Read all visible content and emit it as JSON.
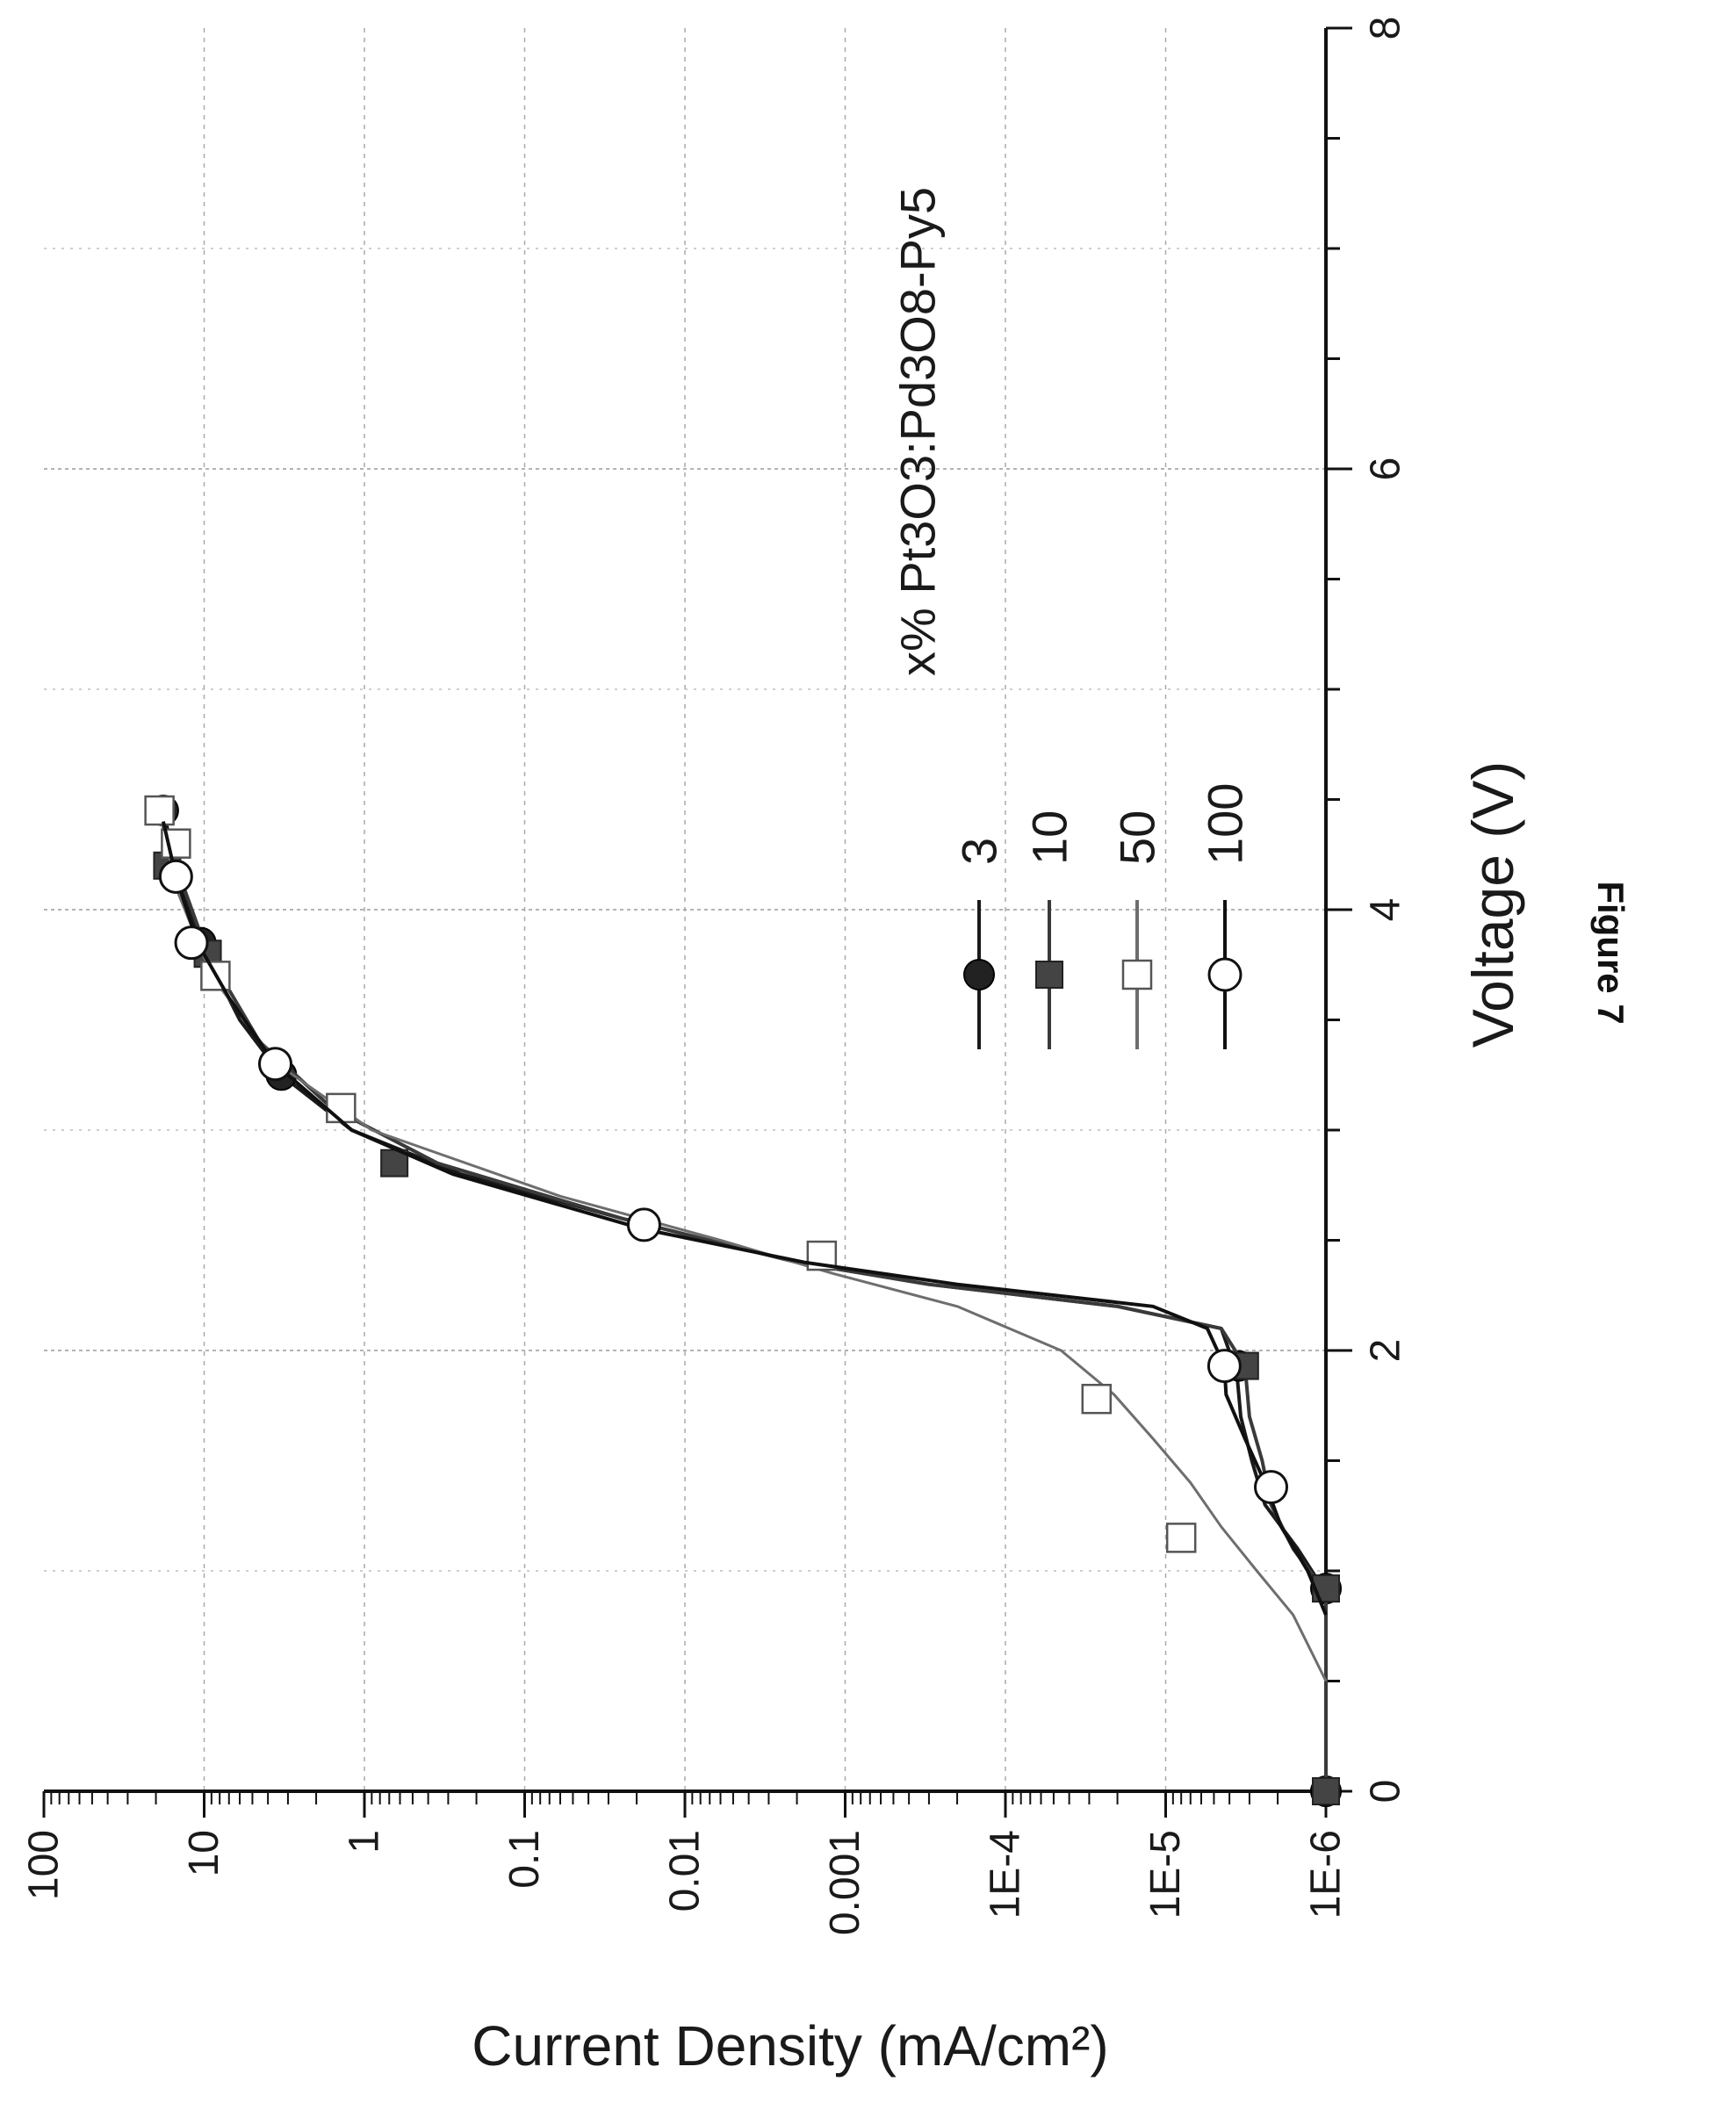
{
  "caption": "Figure 7",
  "chart_data": {
    "type": "line",
    "orientation": "rotated-90-clockwise",
    "xlabel": "Voltage (V)",
    "ylabel": "Current Density (mA/cm²)",
    "xlim": [
      0,
      8
    ],
    "ylim": [
      1e-06,
      100
    ],
    "yscale": "log",
    "x_ticks": [
      {
        "value": 0,
        "label": "0"
      },
      {
        "value": 2,
        "label": "2"
      },
      {
        "value": 4,
        "label": "4"
      },
      {
        "value": 6,
        "label": "6"
      },
      {
        "value": 8,
        "label": "8"
      }
    ],
    "y_ticks": [
      {
        "value": 1e-06,
        "label": "1E-6"
      },
      {
        "value": 1e-05,
        "label": "1E-5"
      },
      {
        "value": 0.0001,
        "label": "1E-4"
      },
      {
        "value": 0.001,
        "label": "0.001"
      },
      {
        "value": 0.01,
        "label": "0.01"
      },
      {
        "value": 0.1,
        "label": "0.1"
      },
      {
        "value": 1,
        "label": "1"
      },
      {
        "value": 10,
        "label": "10"
      },
      {
        "value": 100,
        "label": "100"
      }
    ],
    "grid": true,
    "legend": {
      "title": "x% Pt3O3:Pd3O8-Py5",
      "position": "right"
    },
    "series": [
      {
        "name": "3",
        "marker": "filled-circle",
        "color": "#1a1a1a",
        "line": [
          [
            0.0,
            1e-06
          ],
          [
            0.9,
            1e-06
          ],
          [
            1.1,
            1.5e-06
          ],
          [
            1.3,
            2.4e-06
          ],
          [
            1.5,
            2.9e-06
          ],
          [
            1.7,
            3.4e-06
          ],
          [
            1.9,
            3.6e-06
          ],
          [
            2.1,
            4.5e-06
          ],
          [
            2.2,
            2e-05
          ],
          [
            2.3,
            0.0003
          ],
          [
            2.4,
            0.002
          ],
          [
            2.6,
            0.025
          ],
          [
            2.8,
            0.25
          ],
          [
            3.0,
            1.2
          ],
          [
            3.25,
            3.3
          ],
          [
            3.5,
            6
          ],
          [
            3.85,
            10.5
          ],
          [
            4.2,
            15
          ],
          [
            4.45,
            18
          ]
        ],
        "markers": [
          [
            0.0,
            1e-06
          ],
          [
            0.92,
            1e-06
          ],
          [
            1.93,
            3.5e-06
          ],
          [
            3.25,
            3.3
          ],
          [
            3.85,
            10.5
          ],
          [
            4.45,
            18
          ]
        ]
      },
      {
        "name": "10",
        "marker": "filled-square",
        "color": "#3a3a3a",
        "line": [
          [
            0.0,
            1e-06
          ],
          [
            0.9,
            1e-06
          ],
          [
            1.1,
            1.6e-06
          ],
          [
            1.3,
            2.2e-06
          ],
          [
            1.5,
            2.5e-06
          ],
          [
            1.7,
            3e-06
          ],
          [
            1.93,
            3.2e-06
          ],
          [
            2.1,
            4.5e-06
          ],
          [
            2.2,
            2e-05
          ],
          [
            2.3,
            0.0003
          ],
          [
            2.4,
            0.002
          ],
          [
            2.6,
            0.025
          ],
          [
            2.85,
            0.35
          ],
          [
            3.1,
            1.6
          ],
          [
            3.4,
            4.5
          ],
          [
            3.8,
            9.5
          ],
          [
            4.2,
            15
          ],
          [
            4.45,
            19
          ]
        ],
        "markers": [
          [
            0.0,
            1e-06
          ],
          [
            0.92,
            1e-06
          ],
          [
            1.93,
            3.2e-06
          ],
          [
            2.85,
            0.65
          ],
          [
            3.8,
            9.5
          ],
          [
            4.2,
            17
          ],
          [
            4.45,
            19
          ]
        ]
      },
      {
        "name": "50",
        "marker": "open-square",
        "color": "#6e6e6e",
        "line": [
          [
            0.5,
            1e-06
          ],
          [
            0.8,
            1.6e-06
          ],
          [
            1.0,
            2.7e-06
          ],
          [
            1.2,
            4.5e-06
          ],
          [
            1.4,
            7e-06
          ],
          [
            1.6,
            1.2e-05
          ],
          [
            1.8,
            2.1e-05
          ],
          [
            2.0,
            4.5e-05
          ],
          [
            2.2,
            0.0002
          ],
          [
            2.35,
            0.0012
          ],
          [
            2.5,
            0.006
          ],
          [
            2.7,
            0.06
          ],
          [
            3.0,
            0.9
          ],
          [
            3.3,
            3.5
          ],
          [
            3.7,
            9
          ],
          [
            4.1,
            15
          ],
          [
            4.45,
            19
          ]
        ],
        "markers": [
          [
            1.15,
            8e-06
          ],
          [
            1.78,
            2.7e-05
          ],
          [
            2.43,
            0.0014
          ],
          [
            3.1,
            1.4
          ],
          [
            3.7,
            8.5
          ],
          [
            4.3,
            15
          ],
          [
            4.45,
            19
          ]
        ]
      },
      {
        "name": "100",
        "marker": "open-circle",
        "color": "#101010",
        "line": [
          [
            0.8,
            1e-06
          ],
          [
            1.0,
            1.3e-06
          ],
          [
            1.2,
            1.9e-06
          ],
          [
            1.4,
            2.4e-06
          ],
          [
            1.6,
            3.2e-06
          ],
          [
            1.8,
            4.2e-06
          ],
          [
            1.93,
            4.3e-06
          ],
          [
            2.1,
            5.5e-06
          ],
          [
            2.2,
            1.2e-05
          ],
          [
            2.3,
            0.0002
          ],
          [
            2.4,
            0.0018
          ],
          [
            2.55,
            0.018
          ],
          [
            2.8,
            0.28
          ],
          [
            3.0,
            1.2
          ],
          [
            3.3,
            3.6
          ],
          [
            3.6,
            7
          ],
          [
            3.85,
            11
          ],
          [
            4.15,
            15
          ],
          [
            4.4,
            18
          ]
        ],
        "markers": [
          [
            1.38,
            2.2e-06
          ],
          [
            1.93,
            4.3e-06
          ],
          [
            2.57,
            0.018
          ],
          [
            3.3,
            3.6
          ],
          [
            3.85,
            12
          ],
          [
            4.15,
            15
          ]
        ]
      }
    ]
  }
}
